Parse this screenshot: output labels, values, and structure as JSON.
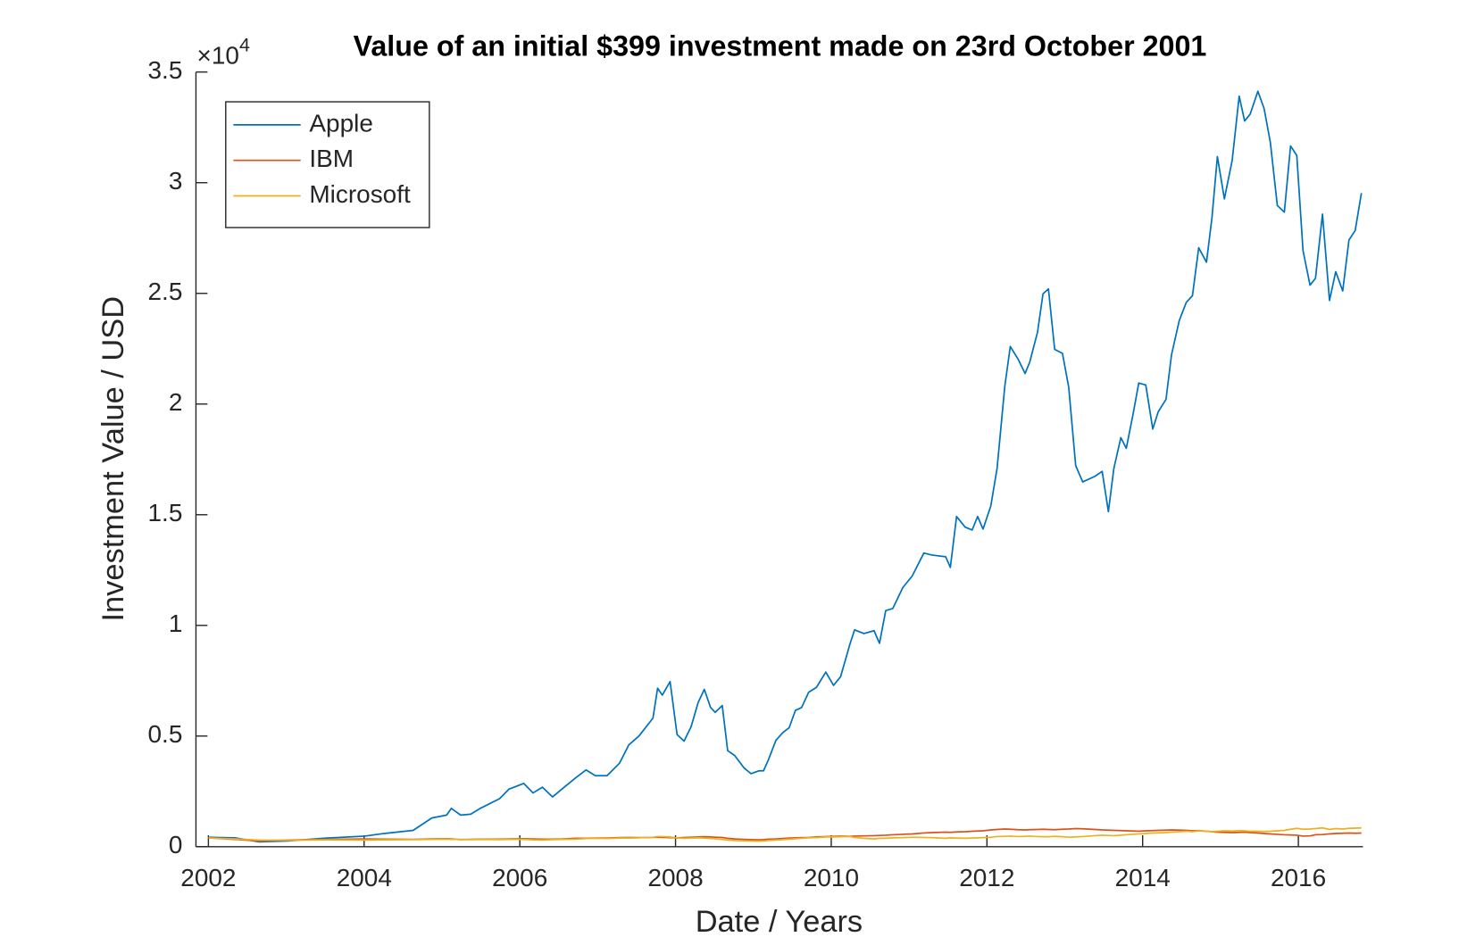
{
  "chart_data": {
    "type": "line",
    "title": "Value of an initial $399 investment made on 23rd October 2001",
    "x_label": "Date / Years",
    "y_label": "Investment Value / USD",
    "y_multiplier": "×10",
    "y_multiplier_exponent": "4",
    "legend": "upper-left",
    "grid": false,
    "xlim": [
      2001.84,
      2016.83
    ],
    "xticks": [
      2002,
      2004,
      2006,
      2008,
      2010,
      2012,
      2014,
      2016
    ],
    "ylim": [
      0,
      35000
    ],
    "yticks": [
      0,
      {
        "value": 5000,
        "label": "0.5"
      },
      {
        "value": 10000,
        "label": "1"
      },
      {
        "value": 15000,
        "label": "1.5"
      },
      {
        "value": 20000,
        "label": "2"
      },
      {
        "value": 25000,
        "label": "2.5"
      },
      {
        "value": 30000,
        "label": "3"
      },
      {
        "value": 35000,
        "label": "3.5"
      }
    ],
    "x": [
      2002.0,
      2002.35,
      2002.65,
      2003.02,
      2003.52,
      2004.01,
      2004.26,
      2004.63,
      2004.87,
      2005.06,
      2005.12,
      2005.24,
      2005.37,
      2005.49,
      2005.74,
      2005.86,
      2006.05,
      2006.17,
      2006.29,
      2006.42,
      2006.54,
      2006.72,
      2006.85,
      2006.97,
      2007.12,
      2007.28,
      2007.4,
      2007.53,
      2007.71,
      2007.77,
      2007.83,
      2007.93,
      2008.02,
      2008.11,
      2008.2,
      2008.29,
      2008.37,
      2008.45,
      2008.51,
      2008.6,
      2008.67,
      2008.76,
      2008.88,
      2008.97,
      2009.07,
      2009.13,
      2009.19,
      2009.29,
      2009.38,
      2009.46,
      2009.54,
      2009.62,
      2009.71,
      2009.81,
      2009.93,
      2010.03,
      2010.12,
      2010.24,
      2010.3,
      2010.42,
      2010.55,
      2010.62,
      2010.7,
      2010.79,
      2010.92,
      2011.04,
      2011.19,
      2011.29,
      2011.47,
      2011.53,
      2011.61,
      2011.72,
      2011.81,
      2011.88,
      2011.95,
      2012.05,
      2012.13,
      2012.23,
      2012.3,
      2012.4,
      2012.49,
      2012.55,
      2012.65,
      2012.72,
      2012.79,
      2012.87,
      2012.97,
      2013.05,
      2013.14,
      2013.23,
      2013.39,
      2013.48,
      2013.56,
      2013.63,
      2013.72,
      2013.79,
      2013.88,
      2013.95,
      2014.04,
      2014.13,
      2014.2,
      2014.3,
      2014.37,
      2014.47,
      2014.56,
      2014.64,
      2014.72,
      2014.82,
      2014.89,
      2014.96,
      2015.05,
      2015.15,
      2015.24,
      2015.31,
      2015.38,
      2015.48,
      2015.56,
      2015.64,
      2015.73,
      2015.82,
      2015.9,
      2015.98,
      2016.06,
      2016.15,
      2016.22,
      2016.31,
      2016.4,
      2016.48,
      2016.57,
      2016.65,
      2016.73,
      2016.81
    ],
    "series": [
      {
        "name": "Apple",
        "color": "#0072bd",
        "values": [
          430,
          400,
          220,
          260,
          390,
          480,
          600,
          740,
          1300,
          1430,
          1730,
          1430,
          1470,
          1730,
          2170,
          2600,
          2860,
          2430,
          2690,
          2250,
          2600,
          3120,
          3470,
          3210,
          3210,
          3770,
          4600,
          5000,
          5810,
          7160,
          6850,
          7460,
          5070,
          4770,
          5420,
          6510,
          7110,
          6290,
          6070,
          6380,
          4340,
          4120,
          3560,
          3300,
          3430,
          3430,
          3900,
          4810,
          5160,
          5380,
          6160,
          6290,
          6980,
          7200,
          7890,
          7290,
          7680,
          9150,
          9800,
          9630,
          9760,
          9190,
          10670,
          10760,
          11710,
          12230,
          13270,
          13180,
          13100,
          12620,
          14920,
          14440,
          14310,
          14920,
          14350,
          15400,
          17090,
          20820,
          22600,
          22030,
          21380,
          21900,
          23250,
          24980,
          25200,
          22470,
          22290,
          20770,
          17220,
          16480,
          16740,
          16960,
          15140,
          17090,
          18480,
          18000,
          19600,
          20950,
          20860,
          18870,
          19650,
          20210,
          22210,
          23770,
          24590,
          24900,
          27060,
          26410,
          28410,
          31180,
          29270,
          31010,
          33910,
          32790,
          33090,
          34130,
          33350,
          31830,
          28970,
          28670,
          31660,
          31230,
          26930,
          25370,
          25680,
          28580,
          24680,
          25980,
          25110,
          27410,
          27840,
          29530
        ]
      },
      {
        "name": "IBM",
        "color": "#d95319",
        "values": [
          400,
          330,
          260,
          300,
          330,
          350,
          340,
          330,
          350,
          360,
          350,
          320,
          330,
          340,
          340,
          350,
          360,
          350,
          340,
          340,
          350,
          380,
          380,
          390,
          390,
          410,
          420,
          410,
          420,
          430,
          420,
          410,
          400,
          420,
          430,
          440,
          450,
          440,
          430,
          420,
          380,
          350,
          330,
          320,
          310,
          320,
          340,
          350,
          370,
          390,
          400,
          410,
          420,
          440,
          460,
          470,
          480,
          470,
          480,
          490,
          500,
          510,
          520,
          540,
          560,
          580,
          620,
          640,
          660,
          650,
          670,
          680,
          700,
          710,
          720,
          760,
          780,
          800,
          790,
          770,
          760,
          770,
          780,
          790,
          780,
          770,
          790,
          800,
          820,
          810,
          780,
          760,
          750,
          740,
          730,
          720,
          710,
          700,
          720,
          730,
          740,
          750,
          760,
          750,
          740,
          720,
          730,
          700,
          680,
          660,
          650,
          640,
          650,
          660,
          640,
          620,
          600,
          580,
          560,
          540,
          530,
          520,
          480,
          490,
          540,
          550,
          580,
          600,
          610,
          620,
          610,
          620
        ]
      },
      {
        "name": "Microsoft",
        "color": "#edb120",
        "values": [
          399,
          350,
          300,
          290,
          310,
          300,
          310,
          320,
          330,
          340,
          330,
          330,
          320,
          330,
          320,
          330,
          330,
          310,
          300,
          320,
          330,
          340,
          370,
          380,
          370,
          390,
          390,
          400,
          430,
          460,
          460,
          440,
          400,
          380,
          390,
          400,
          390,
          370,
          360,
          330,
          300,
          280,
          270,
          260,
          250,
          260,
          280,
          300,
          320,
          340,
          360,
          380,
          400,
          410,
          440,
          440,
          450,
          460,
          420,
          380,
          350,
          380,
          380,
          400,
          410,
          430,
          420,
          410,
          380,
          400,
          390,
          380,
          390,
          400,
          410,
          430,
          460,
          470,
          480,
          460,
          470,
          480,
          460,
          450,
          450,
          470,
          450,
          430,
          440,
          460,
          500,
          520,
          510,
          500,
          520,
          540,
          560,
          580,
          600,
          620,
          630,
          640,
          660,
          680,
          700,
          680,
          720,
          700,
          680,
          700,
          720,
          710,
          730,
          720,
          700,
          700,
          690,
          700,
          720,
          740,
          790,
          830,
          790,
          800,
          820,
          850,
          780,
          820,
          800,
          830,
          840,
          850
        ]
      }
    ]
  }
}
